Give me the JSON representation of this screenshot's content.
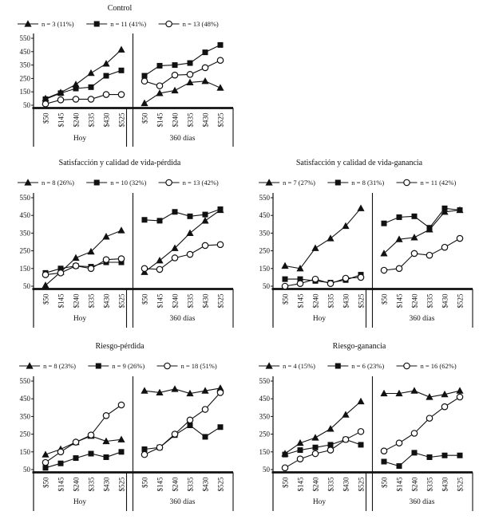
{
  "figure": {
    "background": "#ffffff",
    "line_color": "#111111",
    "open_marker_fill": "#ffffff"
  },
  "axes": {
    "y_ticks": [
      550,
      450,
      350,
      250,
      150,
      50
    ],
    "y_range": [
      50,
      550
    ],
    "x_categories": [
      "$50",
      "$145",
      "$240",
      "$335",
      "$430",
      "$525"
    ],
    "panel_labels": [
      "Hoy",
      "360 días"
    ]
  },
  "chart_data": [
    {
      "type": "line",
      "title": "Control",
      "grid_position": "row-1-left",
      "legend": [
        {
          "marker": "triangle-filled",
          "label": "n = 3 (11%)"
        },
        {
          "marker": "square-filled",
          "label": "n = 11 (41%)"
        },
        {
          "marker": "circle-open",
          "label": "n = 13 (48%)"
        }
      ],
      "panels": [
        {
          "label": "Hoy",
          "values": [
            [
              100,
              145,
              205,
              290,
              360,
              465
            ],
            [
              95,
              140,
              175,
              185,
              270,
              310
            ],
            [
              60,
              90,
              95,
              95,
              130,
              130
            ]
          ]
        },
        {
          "label": "360 días",
          "values": [
            [
              65,
              140,
              160,
              220,
              230,
              180
            ],
            [
              270,
              345,
              350,
              365,
              445,
              500
            ],
            [
              230,
              195,
              275,
              280,
              330,
              385
            ]
          ]
        }
      ]
    },
    {
      "type": "line",
      "title": "Satisfacción y calidad de vida-pérdida",
      "grid_position": "row-2-left",
      "legend": [
        {
          "marker": "triangle-filled",
          "label": "n = 8 (26%)"
        },
        {
          "marker": "square-filled",
          "label": "n = 10 (32%)"
        },
        {
          "marker": "circle-open",
          "label": "n = 13 (42%)"
        }
      ],
      "panels": [
        {
          "label": "Hoy",
          "values": [
            [
              55,
              130,
              210,
              245,
              330,
              365
            ],
            [
              125,
              150,
              165,
              160,
              185,
              185
            ],
            [
              115,
              125,
              165,
              150,
              200,
              205
            ]
          ]
        },
        {
          "label": "360 días",
          "values": [
            [
              130,
              195,
              265,
              350,
              420,
              480
            ],
            [
              425,
              420,
              470,
              445,
              455,
              485
            ],
            [
              150,
              145,
              210,
              230,
              280,
              285
            ]
          ]
        }
      ]
    },
    {
      "type": "line",
      "title": "Satisfacción y calidad de vida-ganancia",
      "grid_position": "row-2-right",
      "legend": [
        {
          "marker": "triangle-filled",
          "label": "n = 7 (27%)"
        },
        {
          "marker": "square-filled",
          "label": "n = 8 (31%)"
        },
        {
          "marker": "circle-open",
          "label": "n = 11 (42%)"
        }
      ],
      "panels": [
        {
          "label": "Hoy",
          "values": [
            [
              165,
              150,
              265,
              320,
              390,
              490
            ],
            [
              90,
              90,
              80,
              70,
              85,
              115
            ],
            [
              50,
              65,
              90,
              65,
              95,
              100
            ]
          ]
        },
        {
          "label": "360 días",
          "values": [
            [
              235,
              315,
              325,
              370,
              470,
              480
            ],
            [
              405,
              440,
              445,
              380,
              490,
              480
            ],
            [
              140,
              150,
              235,
              225,
              270,
              320
            ]
          ]
        }
      ]
    },
    {
      "type": "line",
      "title": "Riesgo-pérdida",
      "grid_position": "row-3-left",
      "legend": [
        {
          "marker": "triangle-filled",
          "label": "n = 8 (23%)"
        },
        {
          "marker": "square-filled",
          "label": "n = 9 (26%)"
        },
        {
          "marker": "circle-open",
          "label": "n = 18 (51%)"
        }
      ],
      "panels": [
        {
          "label": "Hoy",
          "values": [
            [
              135,
              165,
              205,
              240,
              210,
              220
            ],
            [
              60,
              85,
              115,
              140,
              120,
              150
            ],
            [
              90,
              150,
              205,
              245,
              355,
              415
            ]
          ]
        },
        {
          "label": "360 días",
          "values": [
            [
              495,
              485,
              505,
              480,
              495,
              510
            ],
            [
              165,
              175,
              245,
              300,
              235,
              290
            ],
            [
              135,
              175,
              250,
              330,
              390,
              485
            ]
          ]
        }
      ]
    },
    {
      "type": "line",
      "title": "Riesgo-ganancia",
      "grid_position": "row-3-right",
      "legend": [
        {
          "marker": "triangle-filled",
          "label": "n = 4 (15%)"
        },
        {
          "marker": "square-filled",
          "label": "n = 6 (23%)"
        },
        {
          "marker": "circle-open",
          "label": "n = 16 (62%)"
        }
      ],
      "panels": [
        {
          "label": "Hoy",
          "values": [
            [
              140,
              200,
              230,
              280,
              360,
              435
            ],
            [
              135,
              160,
              175,
              190,
              220,
              190
            ],
            [
              60,
              110,
              140,
              160,
              220,
              265
            ]
          ]
        },
        {
          "label": "360 días",
          "values": [
            [
              480,
              480,
              495,
              460,
              475,
              495
            ],
            [
              95,
              70,
              145,
              120,
              130,
              130
            ],
            [
              155,
              200,
              255,
              340,
              405,
              460
            ]
          ]
        }
      ]
    }
  ]
}
